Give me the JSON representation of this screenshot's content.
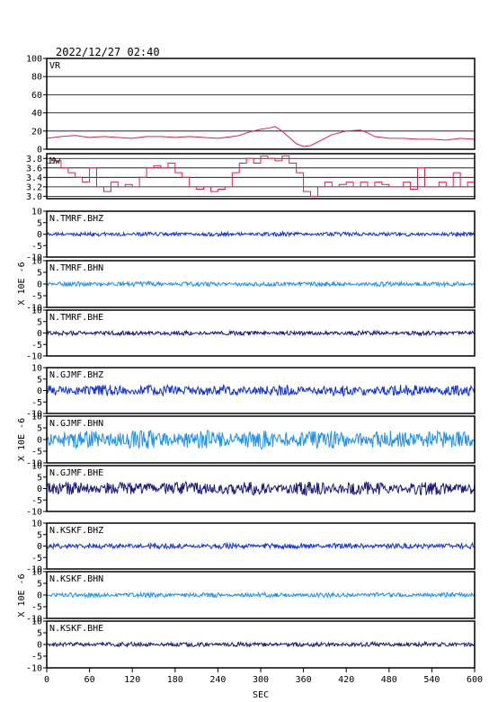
{
  "title": "2022/12/27 02:40",
  "xlabel": "SEC",
  "ylabel": "X 10E -6",
  "colors": {
    "red": "#e0204a",
    "dark_blue": "#1a1a80",
    "blue": "#1030d8",
    "light_blue": "#1e90f0"
  },
  "chart_data": [
    {
      "type": "line",
      "panel_label": "VR",
      "ylim": [
        0,
        100
      ],
      "yticks": [
        "0",
        "20",
        "40",
        "60",
        "80",
        "100"
      ],
      "grid": true,
      "x_range": [
        0,
        600
      ],
      "series": [
        {
          "color": "red",
          "x": [
            0,
            20,
            40,
            60,
            80,
            100,
            120,
            140,
            160,
            180,
            200,
            220,
            240,
            260,
            270,
            280,
            290,
            300,
            310,
            320,
            330,
            340,
            350,
            360,
            370,
            380,
            390,
            400,
            420,
            440,
            450,
            460,
            470,
            480,
            500,
            520,
            540,
            560,
            580,
            600
          ],
          "y": [
            12,
            14,
            15,
            13,
            14,
            13,
            12,
            14,
            14,
            13,
            14,
            13,
            12,
            14,
            15,
            18,
            20,
            22,
            23,
            25,
            20,
            13,
            6,
            3,
            4,
            8,
            12,
            16,
            20,
            21,
            18,
            14,
            13,
            12,
            12,
            11,
            11,
            10,
            12,
            11
          ]
        }
      ]
    },
    {
      "type": "line",
      "panel_label": "Mw",
      "ylim": [
        2.95,
        3.9
      ],
      "yticks": [
        "3.0",
        "3.2",
        "3.4",
        "3.6",
        "3.8"
      ],
      "grid": true,
      "x_range": [
        0,
        600
      ],
      "series": [
        {
          "color": "red",
          "x": [
            0,
            10,
            20,
            30,
            40,
            50,
            60,
            70,
            80,
            90,
            100,
            110,
            120,
            130,
            140,
            150,
            160,
            170,
            180,
            190,
            200,
            210,
            220,
            230,
            240,
            250,
            260,
            270,
            280,
            290,
            300,
            310,
            320,
            330,
            340,
            350,
            360,
            370,
            380,
            390,
            400,
            410,
            420,
            430,
            440,
            450,
            460,
            470,
            480,
            490,
            500,
            510,
            520,
            530,
            540,
            550,
            560,
            570,
            580,
            590,
            600
          ],
          "y": [
            3.7,
            3.75,
            3.6,
            3.5,
            3.4,
            3.3,
            3.6,
            3.2,
            3.1,
            3.3,
            3.2,
            3.25,
            3.2,
            3.4,
            3.6,
            3.65,
            3.6,
            3.7,
            3.5,
            3.4,
            3.2,
            3.15,
            3.2,
            3.1,
            3.15,
            3.2,
            3.5,
            3.7,
            3.8,
            3.7,
            3.85,
            3.8,
            3.75,
            3.85,
            3.7,
            3.5,
            3.1,
            3.0,
            3.2,
            3.3,
            3.2,
            3.25,
            3.3,
            3.2,
            3.3,
            3.2,
            3.3,
            3.25,
            3.2,
            3.2,
            3.3,
            3.15,
            3.6,
            3.2,
            3.2,
            3.3,
            3.2,
            3.5,
            3.2,
            3.3,
            3.0
          ]
        }
      ]
    },
    {
      "type": "line",
      "panel_label": "N.TMRF.BHZ",
      "ylim": [
        -10,
        10
      ],
      "yticks": [
        "-10",
        "-5",
        "0",
        "5",
        "10"
      ],
      "x_range": [
        0,
        600
      ],
      "series": [
        {
          "color": "blue",
          "amplitude": 0.9
        }
      ]
    },
    {
      "type": "line",
      "panel_label": "N.TMRF.BHN",
      "ylim": [
        -10,
        10
      ],
      "yticks": [
        "-10",
        "-5",
        "0",
        "5",
        "10"
      ],
      "x_range": [
        0,
        600
      ],
      "series": [
        {
          "color": "light_blue",
          "amplitude": 1.0
        }
      ]
    },
    {
      "type": "line",
      "panel_label": "N.TMRF.BHE",
      "ylim": [
        -10,
        10
      ],
      "yticks": [
        "-10",
        "-5",
        "0",
        "5",
        "10"
      ],
      "x_range": [
        0,
        600
      ],
      "series": [
        {
          "color": "dark_blue",
          "amplitude": 1.0
        }
      ]
    },
    {
      "type": "line",
      "panel_label": "N.GJMF.BHZ",
      "ylim": [
        -10,
        10
      ],
      "yticks": [
        "-10",
        "-5",
        "0",
        "5",
        "10"
      ],
      "x_range": [
        0,
        600
      ],
      "series": [
        {
          "color": "blue",
          "amplitude": 2.5
        }
      ]
    },
    {
      "type": "line",
      "panel_label": "N.GJMF.BHN",
      "ylim": [
        -10,
        10
      ],
      "yticks": [
        "-10",
        "-5",
        "0",
        "5",
        "10"
      ],
      "x_range": [
        0,
        600
      ],
      "series": [
        {
          "color": "light_blue",
          "amplitude": 4.0
        }
      ]
    },
    {
      "type": "line",
      "panel_label": "N.GJMF.BHE",
      "ylim": [
        -10,
        10
      ],
      "yticks": [
        "-10",
        "-5",
        "0",
        "5",
        "10"
      ],
      "x_range": [
        0,
        600
      ],
      "series": [
        {
          "color": "dark_blue",
          "amplitude": 3.0
        }
      ]
    },
    {
      "type": "line",
      "panel_label": "N.KSKF.BHZ",
      "ylim": [
        -10,
        10
      ],
      "yticks": [
        "-10",
        "-5",
        "0",
        "5",
        "10"
      ],
      "x_range": [
        0,
        600
      ],
      "series": [
        {
          "color": "blue",
          "amplitude": 1.2
        }
      ]
    },
    {
      "type": "line",
      "panel_label": "N.KSKF.BHN",
      "ylim": [
        -10,
        10
      ],
      "yticks": [
        "-10",
        "-5",
        "0",
        "5",
        "10"
      ],
      "x_range": [
        0,
        600
      ],
      "series": [
        {
          "color": "light_blue",
          "amplitude": 1.0
        }
      ]
    },
    {
      "type": "line",
      "panel_label": "N.KSKF.BHE",
      "ylim": [
        -10,
        10
      ],
      "yticks": [
        "-10",
        "-5",
        "0",
        "5",
        "10"
      ],
      "x_range": [
        0,
        600
      ],
      "series": [
        {
          "color": "dark_blue",
          "amplitude": 1.0
        }
      ]
    }
  ],
  "xticks": [
    "0",
    "60",
    "120",
    "180",
    "240",
    "300",
    "360",
    "420",
    "480",
    "540",
    "600"
  ]
}
